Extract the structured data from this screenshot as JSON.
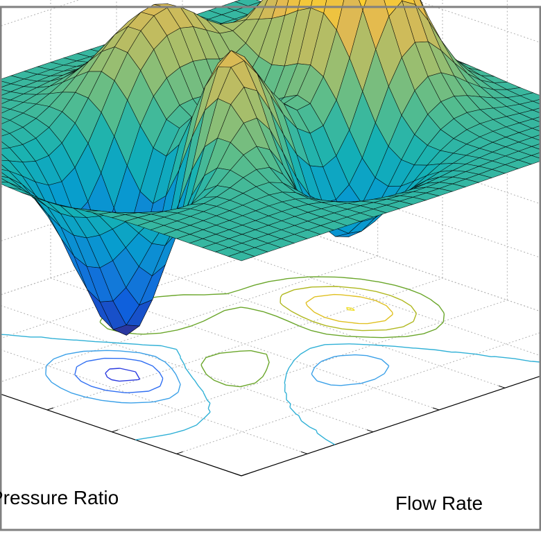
{
  "chart_data": {
    "type": "surface",
    "title": "",
    "xlabel": "Pressure Ratio",
    "ylabel": "Flow Rate",
    "zlabel": "",
    "function": "peaks",
    "grid_size": 31,
    "xlim": [
      -3,
      3
    ],
    "ylim": [
      -3,
      3
    ],
    "zlim": [
      -8,
      8
    ],
    "grid": true,
    "colormap": "parula",
    "color_range": [
      -6.55,
      8.08
    ],
    "contour_levels": [
      -6,
      -4,
      -2,
      0,
      2,
      4,
      6,
      8
    ],
    "contour_colors": [
      "#2a3ae0",
      "#2f6ef2",
      "#3aa0e8",
      "#2fb0d6",
      "#6aa62a",
      "#b0b820",
      "#e0c020",
      "#f2e02a"
    ],
    "peaks": [
      {
        "x": 0.0,
        "y": 1.6,
        "z": 8.1
      },
      {
        "x": -0.5,
        "y": -0.6,
        "z": 3.8
      },
      {
        "x": -1.4,
        "y": 0.2,
        "z": 3.2
      }
    ],
    "troughs": [
      {
        "x": 0.25,
        "y": -1.6,
        "z": -6.5
      },
      {
        "x": 0.0,
        "y": 0.2,
        "z": -3.3
      }
    ]
  },
  "colors": {
    "frame_border": "#808080",
    "grid_line": "#b0b0b0",
    "mesh_edge": "#000000",
    "background": "#ffffff"
  }
}
